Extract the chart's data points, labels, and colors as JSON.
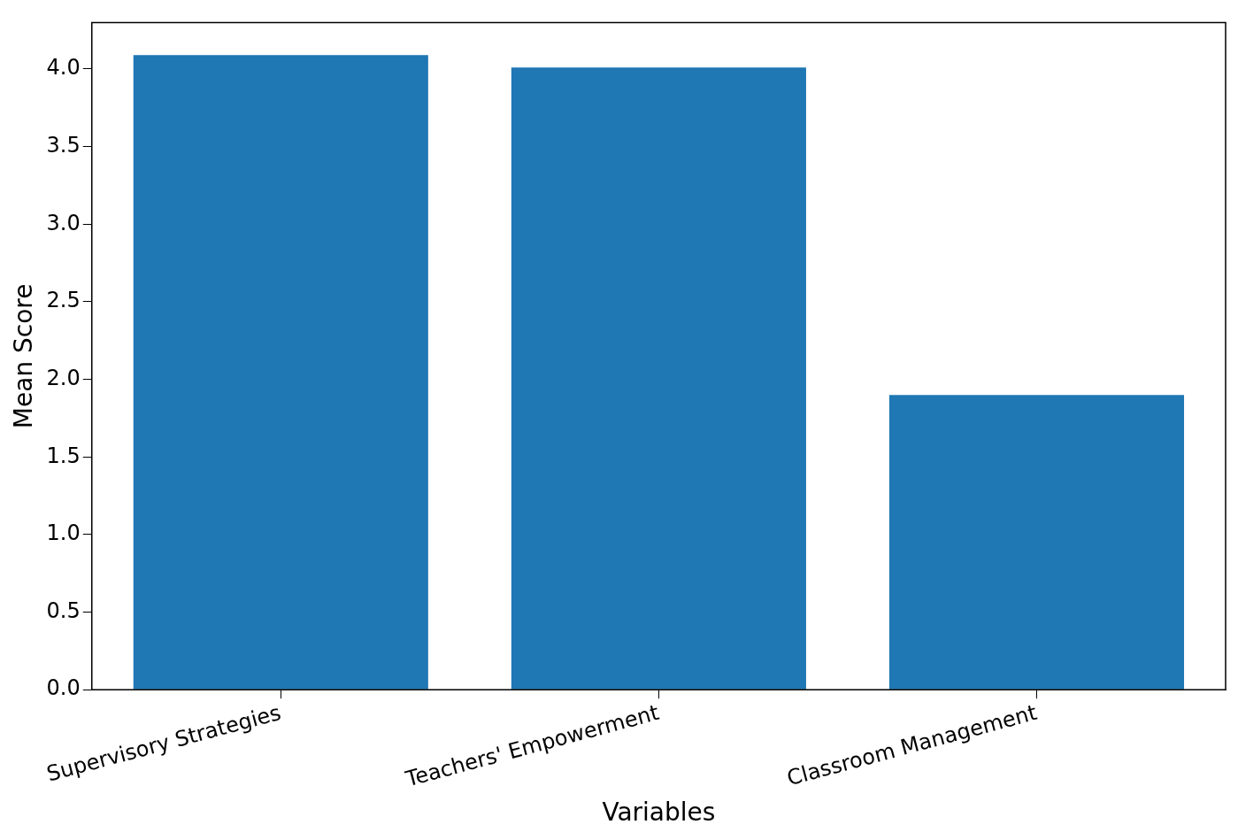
{
  "chart_data": {
    "type": "bar",
    "xlabel": "Variables",
    "ylabel": "Mean Score",
    "categories": [
      "Supervisory Strategies",
      "Teachers' Empowerment",
      "Classroom Management"
    ],
    "values": [
      4.09,
      4.01,
      1.9
    ],
    "color": "#1f77b4",
    "ylim": [
      0,
      4.3
    ],
    "yticks": [
      {
        "value": 0,
        "label": "0.0"
      },
      {
        "value": 0.5,
        "label": "0.5"
      },
      {
        "value": 1,
        "label": "1.0"
      },
      {
        "value": 1.5,
        "label": "1.5"
      },
      {
        "value": 2,
        "label": "2.0"
      },
      {
        "value": 2.5,
        "label": "2.5"
      },
      {
        "value": 3,
        "label": "3.0"
      },
      {
        "value": 3.5,
        "label": "3.5"
      },
      {
        "value": 4,
        "label": "4.0"
      }
    ],
    "grid": false,
    "legend": false
  }
}
